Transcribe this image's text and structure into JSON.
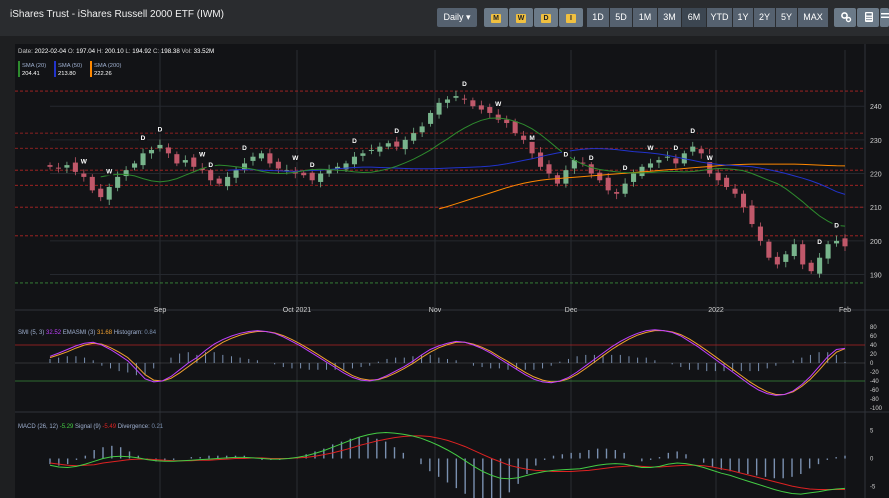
{
  "header": {
    "title": "iShares Trust - iShares Russell 2000 ETF (IWM)",
    "interval": "Daily",
    "periodic_icons": [
      {
        "name": "monthly-signal-icon",
        "letter": "M",
        "color": "#f0c040"
      },
      {
        "name": "weekly-signal-icon",
        "letter": "W",
        "color": "#f0c040"
      },
      {
        "name": "daily-signal-icon",
        "letter": "D",
        "color": "#f0c040"
      },
      {
        "name": "intraday-signal-icon",
        "letter": "I",
        "color": "#f0c040"
      }
    ],
    "ranges": [
      "1D",
      "5D",
      "1M",
      "3M",
      "6M",
      "YTD",
      "1Y",
      "2Y",
      "5Y",
      "MAX"
    ],
    "active_range": "6M",
    "tool_icons": [
      "settings-icon",
      "calculator-icon",
      "list-icon"
    ]
  },
  "price_panel": {
    "ohlc": {
      "date_label": "Date:",
      "date": "2022-02-04",
      "o_label": "O:",
      "o": "197.04",
      "h_label": "H:",
      "h": "200.10",
      "l_label": "L:",
      "l": "194.92",
      "c_label": "C:",
      "c": "198.38",
      "vol_label": "Vol:",
      "vol": "33.52M"
    },
    "sma_legend": [
      {
        "label": "SMA (20)",
        "value": "204.41",
        "color": "#2e8b2e"
      },
      {
        "label": "SMA (50)",
        "value": "213.80",
        "color": "#2233cc"
      },
      {
        "label": "SMA (200)",
        "value": "222.26",
        "color": "#ff8800"
      }
    ]
  },
  "smi_panel": {
    "label": "SMI",
    "params": "(5, 3)",
    "value": "32.52",
    "ema_label": "EMASMI",
    "ema_params": "(3)",
    "ema_value": "31.68",
    "hist_label": "Histogram:",
    "hist_value": "0.84",
    "colors": {
      "smi": "#c040ff",
      "ema": "#f0a030",
      "hist": "#7a90b0"
    }
  },
  "macd_panel": {
    "label": "MACD",
    "params": "(26, 12)",
    "value": "-5.29",
    "signal_label": "Signal",
    "signal_params": "(9)",
    "signal_value": "-5.49",
    "div_label": "Divergence:",
    "div_value": "0.21",
    "colors": {
      "macd": "#44cc44",
      "signal": "#dd2222",
      "div": "#7a90b0"
    }
  },
  "chart_data": [
    {
      "type": "candlestick",
      "title": "iShares Trust - iShares Russell 2000 ETF (IWM)",
      "x_ticks": [
        "Sep",
        "Oct 2021",
        "Nov",
        "Dec",
        "2022",
        "Feb"
      ],
      "ylim": [
        186,
        246
      ],
      "y_ticks": [
        190,
        200,
        210,
        220,
        230,
        240
      ],
      "reference_lines": [
        244.5,
        232,
        227.5,
        221,
        216.5,
        210,
        201.5,
        187.5
      ],
      "closes": [
        222,
        221.5,
        222.5,
        220.5,
        219,
        215,
        213,
        216,
        219,
        221,
        223,
        226,
        227,
        228.5,
        226,
        223,
        224,
        222,
        221,
        218,
        217,
        219,
        221,
        223,
        225,
        226,
        223,
        221.5,
        221,
        220,
        219.5,
        218,
        220,
        221,
        222,
        223,
        225,
        226,
        227,
        228,
        229,
        228,
        230,
        232,
        234,
        238,
        241,
        242,
        243,
        242,
        240,
        239,
        238,
        236,
        235,
        232,
        230,
        226,
        222,
        220,
        217,
        221,
        224,
        223,
        220,
        218,
        215,
        214,
        217,
        220,
        222,
        223,
        224,
        225,
        223,
        226,
        228,
        226,
        220,
        218,
        216,
        214,
        210,
        205,
        200,
        195,
        193,
        196,
        199,
        193,
        191,
        195,
        199,
        200,
        198.38
      ],
      "sma20": [
        219,
        219.5,
        219.8,
        219.7,
        219.3,
        218.5,
        217.8,
        217.5,
        217.8,
        218.5,
        219.5,
        220.5,
        221.5,
        222.2,
        222.5,
        222.3,
        222,
        221.7,
        221.3,
        220.7,
        220.2,
        220,
        220.1,
        220.4,
        220.8,
        221.2,
        221.3,
        221.2,
        221,
        220.8,
        220.5,
        220.3,
        220.4,
        220.8,
        221.4,
        222.2,
        223.2,
        224.3,
        225.6,
        227,
        228.7,
        230.3,
        232,
        233.5,
        234.8,
        235.8,
        236.4,
        236.5,
        236.2,
        235.5,
        234.6,
        233.3,
        231.6,
        229.6,
        227.5,
        225.6,
        224,
        222.7,
        221.8,
        221.2,
        220.8,
        220.5,
        220.3,
        220.2,
        220.2,
        220.3,
        220.5,
        220.6,
        220.6,
        220.5,
        220.6,
        220.9,
        221.3,
        221.5,
        221.4,
        221.2,
        220.8,
        220,
        219,
        218,
        217,
        215.5,
        213.6,
        211.6,
        209.4,
        207.4,
        205.8,
        204.6,
        204.4
      ],
      "sma50": [
        221,
        221.1,
        221.1,
        221.1,
        221,
        220.9,
        220.8,
        220.7,
        220.7,
        220.8,
        220.9,
        221,
        221.2,
        221.4,
        221.6,
        221.8,
        221.9,
        221.9,
        221.8,
        221.7,
        221.6,
        221.5,
        221.4,
        221.4,
        221.4,
        221.5,
        221.6,
        221.7,
        221.8,
        221.9,
        222,
        222.2,
        222.5,
        222.9,
        223.4,
        223.9,
        224.4,
        225,
        225.6,
        226.1,
        226.5,
        226.9,
        227.2,
        227.4,
        227.4,
        227.3,
        227.1,
        226.8,
        226.5,
        226.3,
        226.1,
        225.8,
        225.4,
        224.9,
        224.4,
        223.9,
        223.4,
        223,
        222.7,
        222.5,
        222.4,
        222.2,
        222,
        221.6,
        221.1,
        220.6,
        220,
        219.3,
        218.6,
        217.8,
        216.9,
        215.8,
        214.6,
        213.8
      ],
      "sma200": [
        209.5,
        210.2,
        211,
        211.8,
        212.6,
        213.4,
        214.2,
        215,
        215.8,
        216.5,
        217.1,
        217.6,
        218,
        218.3,
        218.5,
        218.7,
        218.9,
        219.1,
        219.3,
        219.5,
        219.7,
        219.9,
        220.1,
        220.3,
        220.5,
        220.7,
        220.9,
        221.1,
        221.3,
        221.5,
        221.7,
        221.9,
        222.1,
        222.3,
        222.5,
        222.6,
        222.7,
        222.8,
        222.8,
        222.8,
        222.8,
        222.8,
        222.8,
        222.7,
        222.6,
        222.5,
        222.4,
        222.3,
        222.26
      ],
      "markers": [
        {
          "i": 4,
          "letter": "W"
        },
        {
          "i": 7,
          "letter": "W"
        },
        {
          "i": 11,
          "letter": "D"
        },
        {
          "i": 13,
          "letter": "D"
        },
        {
          "i": 18,
          "letter": "W"
        },
        {
          "i": 19,
          "letter": "D"
        },
        {
          "i": 23,
          "letter": "D"
        },
        {
          "i": 29,
          "letter": "W"
        },
        {
          "i": 31,
          "letter": "D"
        },
        {
          "i": 36,
          "letter": "D"
        },
        {
          "i": 41,
          "letter": "D"
        },
        {
          "i": 49,
          "letter": "D"
        },
        {
          "i": 53,
          "letter": "W"
        },
        {
          "i": 57,
          "letter": "M"
        },
        {
          "i": 61,
          "letter": "D"
        },
        {
          "i": 64,
          "letter": "D"
        },
        {
          "i": 68,
          "letter": "D"
        },
        {
          "i": 71,
          "letter": "W"
        },
        {
          "i": 74,
          "letter": "D"
        },
        {
          "i": 76,
          "letter": "D"
        },
        {
          "i": 78,
          "letter": "W"
        },
        {
          "i": 91,
          "letter": "D"
        },
        {
          "i": 93,
          "letter": "D"
        }
      ]
    },
    {
      "type": "line",
      "title": "SMI (5, 3)",
      "ylim": [
        -100,
        80
      ],
      "y_ticks": [
        80,
        60,
        40,
        20,
        0,
        -20,
        -40,
        -60,
        -80,
        -100
      ],
      "series": [
        {
          "name": "SMI",
          "values": [
            15,
            22,
            30,
            38,
            44,
            46,
            40,
            30,
            18,
            5,
            -15,
            -35,
            -42,
            -40,
            -30,
            -15,
            0,
            12,
            28,
            42,
            52,
            60,
            66,
            70,
            72,
            70,
            66,
            58,
            48,
            38,
            26,
            14,
            2,
            -10,
            -22,
            -32,
            -38,
            -40,
            -36,
            -28,
            -18,
            -8,
            4,
            18,
            30,
            38,
            44,
            48,
            46,
            40,
            32,
            22,
            10,
            -2,
            -14,
            -26,
            -36,
            -42,
            -44,
            -40,
            -32,
            -20,
            -6,
            8,
            22,
            36,
            48,
            58,
            66,
            72,
            74,
            72,
            68,
            60,
            48,
            36,
            22,
            8,
            -6,
            -20,
            -34,
            -48,
            -60,
            -68,
            -72,
            -70,
            -62,
            -48,
            -30,
            -8,
            14,
            30,
            32.52
          ]
        },
        {
          "name": "EMASMI",
          "values": [
            12,
            18,
            25,
            33,
            40,
            44,
            42,
            34,
            24,
            12,
            -6,
            -26,
            -38,
            -40,
            -34,
            -22,
            -8,
            6,
            20,
            34,
            46,
            55,
            62,
            67,
            70,
            70,
            67,
            61,
            52,
            42,
            31,
            19,
            7,
            -5,
            -17,
            -28,
            -35,
            -38,
            -37,
            -31,
            -22,
            -12,
            -1,
            12,
            24,
            34,
            41,
            46,
            46,
            42,
            35,
            26,
            14,
            3,
            -9,
            -21,
            -31,
            -38,
            -42,
            -41,
            -35,
            -25,
            -12,
            2,
            16,
            30,
            42,
            53,
            62,
            68,
            72,
            72,
            69,
            63,
            53,
            41,
            28,
            14,
            0,
            -14,
            -28,
            -42,
            -54,
            -64,
            -70,
            -70,
            -64,
            -52,
            -36,
            -16,
            6,
            24,
            31.68
          ]
        }
      ]
    },
    {
      "type": "line",
      "title": "MACD (26, 12)",
      "ylim": [
        -7,
        7
      ],
      "y_ticks": [
        5,
        0,
        -5
      ],
      "series": [
        {
          "name": "MACD",
          "values": [
            -1.2,
            -1.5,
            -1.6,
            -1.4,
            -1,
            -0.5,
            0,
            0.3,
            0.4,
            0.3,
            0.1,
            -0.2,
            -0.4,
            -0.5,
            -0.5,
            -0.4,
            -0.3,
            -0.2,
            -0.1,
            0,
            0.1,
            0.2,
            0.2,
            0.1,
            0,
            -0.1,
            -0.1,
            0,
            0.2,
            0.5,
            0.9,
            1.4,
            2,
            2.6,
            3.2,
            3.8,
            4.2,
            4.5,
            4.6,
            4.5,
            4.3,
            4,
            3.6,
            3,
            2.3,
            1.5,
            0.6,
            -0.4,
            -1.4,
            -2.3,
            -3,
            -3.5,
            -3.6,
            -3.4,
            -3,
            -2.6,
            -2.3,
            -2.1,
            -2,
            -1.9,
            -1.8,
            -1.5,
            -1.2,
            -1,
            -0.9,
            -1,
            -1.3,
            -1.6,
            -1.6,
            -1.4,
            -1,
            -0.8,
            -0.9,
            -1.2,
            -1.6,
            -2.1,
            -2.6,
            -3,
            -3.5,
            -4,
            -4.5,
            -5,
            -5.5,
            -5.9,
            -6.2,
            -6.3,
            -6.1,
            -5.9,
            -5.6,
            -5.4,
            -5.29
          ]
        },
        {
          "name": "Signal",
          "values": [
            -0.8,
            -1,
            -1.2,
            -1.3,
            -1.2,
            -1.1,
            -0.8,
            -0.6,
            -0.4,
            -0.2,
            -0.1,
            -0.1,
            -0.2,
            -0.3,
            -0.4,
            -0.4,
            -0.4,
            -0.3,
            -0.3,
            -0.2,
            -0.1,
            0,
            0,
            0.1,
            0.1,
            0,
            0,
            0,
            0.1,
            0.2,
            0.4,
            0.7,
            1,
            1.4,
            1.8,
            2.3,
            2.7,
            3.1,
            3.4,
            3.7,
            3.9,
            4,
            4,
            3.9,
            3.6,
            3.2,
            2.7,
            2.1,
            1.4,
            0.7,
            0,
            -0.6,
            -1.2,
            -1.6,
            -1.9,
            -2.1,
            -2.2,
            -2.3,
            -2.3,
            -2.3,
            -2.2,
            -2.1,
            -1.9,
            -1.7,
            -1.5,
            -1.4,
            -1.3,
            -1.4,
            -1.5,
            -1.5,
            -1.4,
            -1.3,
            -1.2,
            -1.2,
            -1.3,
            -1.5,
            -1.8,
            -2.1,
            -2.5,
            -2.9,
            -3.3,
            -3.7,
            -4.1,
            -4.5,
            -4.9,
            -5.2,
            -5.4,
            -5.5,
            -5.5,
            -5.5,
            -5.49
          ]
        }
      ]
    }
  ]
}
